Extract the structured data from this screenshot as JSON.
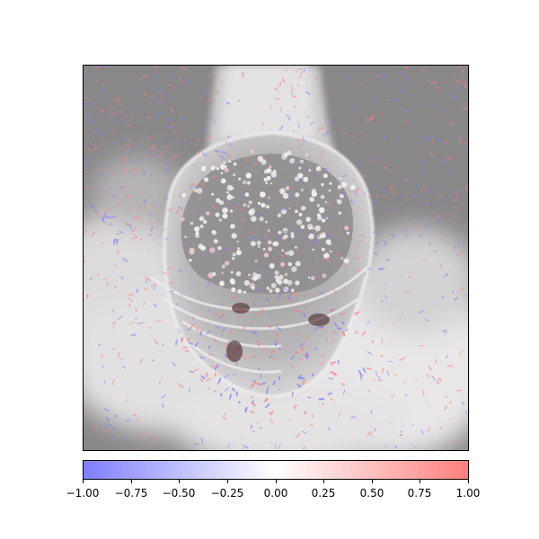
{
  "chart_data": {
    "type": "heatmap",
    "title": "",
    "xlabel": "",
    "ylabel": "",
    "x_ticks_shown": false,
    "y_ticks_shown": false,
    "grid": false,
    "colormap": {
      "name": "bwr",
      "alpha_overlay": true,
      "low_color": "#7f7fff",
      "mid_color": "#ffffff",
      "high_color": "#ff7f7f",
      "vmin": -1.0,
      "vmax": 1.0
    },
    "colorbar": {
      "orientation": "horizontal",
      "placement": "bottom",
      "ticks": [
        -1.0,
        -0.75,
        -0.5,
        -0.25,
        0.0,
        0.25,
        0.5,
        0.75,
        1.0
      ],
      "tick_labels": [
        "−1.00",
        "−0.75",
        "−0.50",
        "−0.25",
        "0.00",
        "0.25",
        "0.50",
        "0.75",
        "1.00"
      ]
    },
    "background_image": "grayscale photo of a spotted fish (whale-shark-like) seen from above, overlaid with a red/blue saliency attribution map",
    "colors": {
      "image_dark_gray": "#8c8a8c",
      "image_light_gray": "#e6e6e6",
      "positive_attribution": "#ff7f7f",
      "negative_attribution": "#7f7fff"
    }
  }
}
